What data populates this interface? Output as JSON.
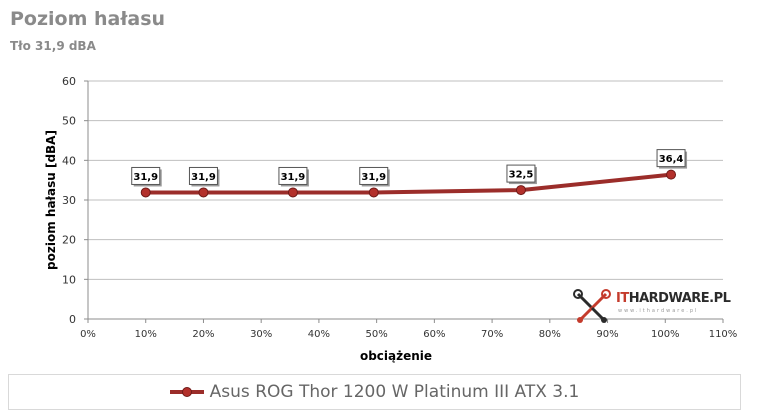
{
  "title": "Poziom hałasu",
  "subtitle": "Tło 31,9 dBA",
  "brand": {
    "logo_text": "ITHARDWARE.PL",
    "logo_sub": "www.ithardware.pl"
  },
  "chart_data": {
    "type": "line",
    "xlabel": "obciążenie",
    "ylabel": "poziom hałasu [dBA]",
    "xlim": [
      0,
      110
    ],
    "ylim": [
      0,
      60
    ],
    "x_ticks": [
      0,
      10,
      20,
      30,
      40,
      50,
      60,
      70,
      80,
      90,
      100,
      110
    ],
    "x_tick_labels": [
      "0%",
      "10%",
      "20%",
      "30%",
      "40%",
      "50%",
      "60%",
      "70%",
      "80%",
      "90%",
      "100%",
      "110%"
    ],
    "y_ticks": [
      0,
      10,
      20,
      30,
      40,
      50,
      60
    ],
    "y_tick_labels": [
      "0",
      "10",
      "20",
      "30",
      "40",
      "50",
      "60"
    ],
    "grid": "horizontal",
    "legend_position": "bottom",
    "series": [
      {
        "name": "Asus ROG Thor 1200 W Platinum III ATX 3.1",
        "color": "#9b2d2a",
        "x": [
          10,
          20,
          35.5,
          49.5,
          75,
          101
        ],
        "y": [
          31.9,
          31.9,
          31.9,
          31.9,
          32.5,
          36.4
        ],
        "labels": [
          "31,9",
          "31,9",
          "31,9",
          "31,9",
          "32,5",
          "36,4"
        ]
      }
    ]
  }
}
